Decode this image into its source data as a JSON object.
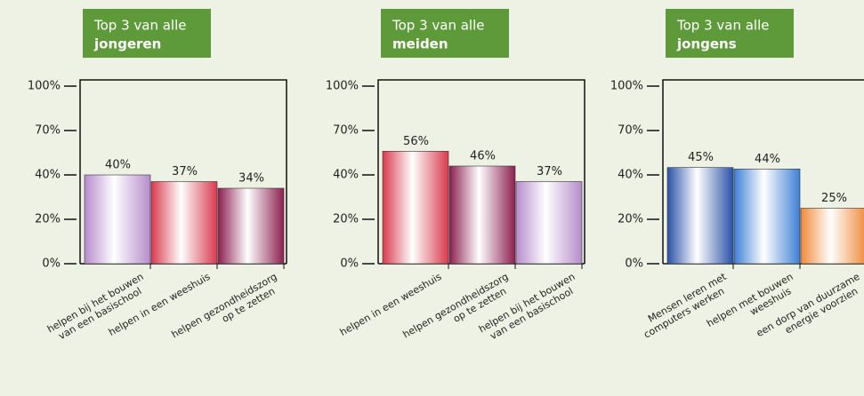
{
  "chart_data": [
    {
      "type": "bar",
      "title": "Top 3 van alle",
      "subtitle": "jongeren",
      "categories": [
        [
          "helpen bij het bouwen",
          "van een basischool"
        ],
        [
          "helpen in een weeshuis"
        ],
        [
          "helpen gezondheidszorg",
          "op te zetten"
        ]
      ],
      "values": [
        40,
        37,
        34
      ],
      "value_labels": [
        "40%",
        "37%",
        "34%"
      ],
      "colors": [
        "#b68ccb",
        "#d93a4e",
        "#8c1f50"
      ],
      "ylim": [
        0,
        100
      ],
      "yticks": [
        {
          "value": 0,
          "label": "0%"
        },
        {
          "value": 20,
          "label": "20%"
        },
        {
          "value": 40,
          "label": "40%"
        },
        {
          "value": 70,
          "label": "70%"
        },
        {
          "value": 100,
          "label": "100%"
        }
      ]
    },
    {
      "type": "bar",
      "title": "Top 3 van alle",
      "subtitle": "meiden",
      "categories": [
        [
          "helpen in een weeshuis"
        ],
        [
          "helpen gezondheidszorg",
          "op te zetten"
        ],
        [
          "helpen bij het bouwen",
          "van een basischool"
        ]
      ],
      "values": [
        56,
        46,
        37
      ],
      "value_labels": [
        "56%",
        "46%",
        "37%"
      ],
      "colors": [
        "#d93a4e",
        "#8c1f50",
        "#b68ccb"
      ],
      "ylim": [
        0,
        100
      ],
      "yticks": [
        {
          "value": 0,
          "label": "0%"
        },
        {
          "value": 20,
          "label": "20%"
        },
        {
          "value": 40,
          "label": "40%"
        },
        {
          "value": 70,
          "label": "70%"
        },
        {
          "value": 100,
          "label": "100%"
        }
      ]
    },
    {
      "type": "bar",
      "title": "Top 3 van alle",
      "subtitle": "jongens",
      "categories": [
        [
          "Mensen leren met",
          "computers werken"
        ],
        [
          "helpen met bouwen",
          "weeshuis"
        ],
        [
          "een dorp van duurzame",
          "energie voorzien"
        ]
      ],
      "values": [
        45,
        44,
        25
      ],
      "value_labels": [
        "45%",
        "44%",
        "25%"
      ],
      "colors": [
        "#2b52a8",
        "#3d7fd6",
        "#f08a3a"
      ],
      "ylim": [
        0,
        100
      ],
      "yticks": [
        {
          "value": 0,
          "label": "0%"
        },
        {
          "value": 20,
          "label": "20%"
        },
        {
          "value": 40,
          "label": "40%"
        },
        {
          "value": 70,
          "label": "70%"
        },
        {
          "value": 100,
          "label": "100%"
        }
      ]
    }
  ]
}
